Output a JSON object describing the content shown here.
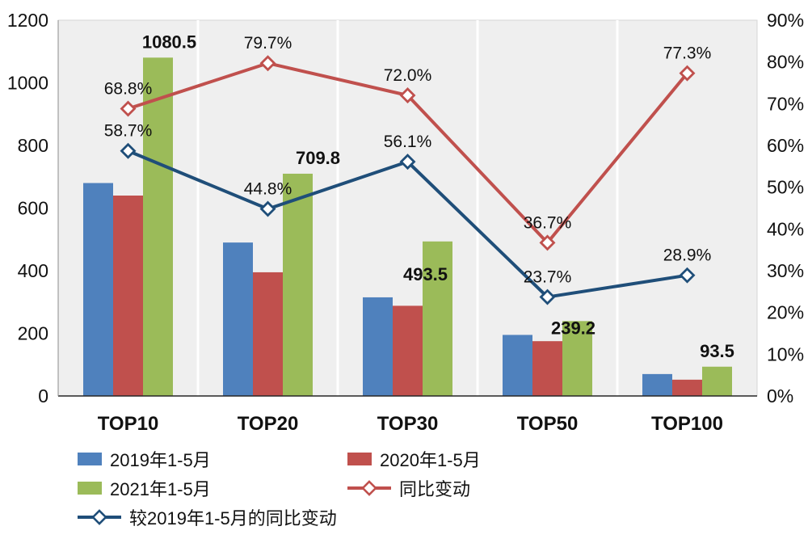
{
  "chart_data": {
    "type": "combo-bar-line",
    "title": "",
    "categories": [
      "TOP10",
      "TOP20",
      "TOP30",
      "TOP50",
      "TOP100"
    ],
    "left_axis": {
      "min": 0,
      "max": 1200,
      "step": 200,
      "tick_labels": [
        "0",
        "200",
        "400",
        "600",
        "800",
        "1000",
        "1200"
      ]
    },
    "right_axis": {
      "min": 0,
      "max": 90,
      "step": 10,
      "tick_labels": [
        "0%",
        "10%",
        "20%",
        "30%",
        "40%",
        "50%",
        "60%",
        "70%",
        "80%",
        "90%"
      ]
    },
    "bar_series": [
      {
        "name": "2019年1-5月",
        "color": "#4f81bd",
        "values": [
          680,
          490,
          315,
          195,
          70
        ]
      },
      {
        "name": "2020年1-5月",
        "color": "#c0504d",
        "values": [
          640,
          395,
          288,
          175,
          52
        ]
      },
      {
        "name": "2021年1-5月",
        "color": "#9bbb59",
        "values": [
          1080.5,
          709.8,
          493.5,
          239.2,
          93.5
        ],
        "labels": [
          "1080.5",
          "709.8",
          "493.5",
          "239.2",
          "93.5"
        ]
      }
    ],
    "line_series": [
      {
        "name": "同比变动",
        "color": "#c0504d",
        "axis": "right",
        "values": [
          68.8,
          79.7,
          72.0,
          36.7,
          77.3
        ],
        "labels": [
          "68.8%",
          "79.7%",
          "72.0%",
          "36.7%",
          "77.3%"
        ]
      },
      {
        "name": "较2019年1-5月的同比变动",
        "color": "#1f4e79",
        "axis": "right",
        "values": [
          58.7,
          44.8,
          56.1,
          23.7,
          28.9
        ],
        "labels": [
          "58.7%",
          "44.8%",
          "56.1%",
          "23.7%",
          "28.9%"
        ]
      }
    ],
    "plot_background": "#efefef",
    "gridline_color": "#ffffff",
    "legend_position": "bottom-left",
    "grid": "vertical-only"
  }
}
